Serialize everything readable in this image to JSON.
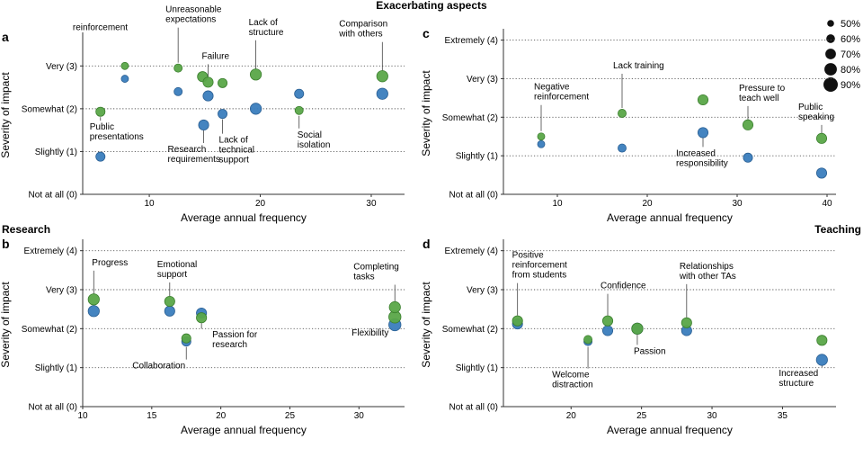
{
  "figure_title": "Exacerbating aspects",
  "section_labels": {
    "research": "Research",
    "teaching": "Teaching"
  },
  "legend": {
    "items": [
      "50%",
      "60%",
      "70%",
      "80%",
      "90%"
    ],
    "sizes": [
      50,
      60,
      70,
      80,
      90
    ]
  },
  "colors": {
    "green": "#5aa748",
    "blue": "#3a7dbd",
    "stroke_green": "#3b7f2e",
    "stroke_blue": "#2a5f93"
  },
  "chart_data": [
    {
      "panel": "a",
      "type": "scatter",
      "xlabel": "Average annual frequency",
      "ylabel": "Severity of impact",
      "xlim": [
        4,
        33
      ],
      "xticks": [
        10,
        20,
        30
      ],
      "ylim": [
        0,
        3.7
      ],
      "ytick_values": [
        0,
        1,
        2,
        3
      ],
      "ytick_labels": [
        "Not at all (0)",
        "Slightly (1)",
        "Somewhat (2)",
        "Very (3)"
      ],
      "points": [
        {
          "x": 5.6,
          "y": 1.93,
          "size": 60,
          "series": "green"
        },
        {
          "x": 5.6,
          "y": 0.88,
          "size": 60,
          "series": "blue"
        },
        {
          "x": 7.8,
          "y": 3.0,
          "size": 50,
          "series": "green"
        },
        {
          "x": 7.8,
          "y": 2.7,
          "size": 50,
          "series": "blue"
        },
        {
          "x": 12.6,
          "y": 2.95,
          "size": 55,
          "series": "green"
        },
        {
          "x": 12.6,
          "y": 2.4,
          "size": 55,
          "series": "blue"
        },
        {
          "x": 14.8,
          "y": 2.75,
          "size": 65,
          "series": "green"
        },
        {
          "x": 15.3,
          "y": 2.62,
          "size": 65,
          "series": "green"
        },
        {
          "x": 15.3,
          "y": 2.3,
          "size": 65,
          "series": "blue"
        },
        {
          "x": 14.9,
          "y": 1.62,
          "size": 65,
          "series": "blue"
        },
        {
          "x": 16.6,
          "y": 2.6,
          "size": 60,
          "series": "green"
        },
        {
          "x": 16.6,
          "y": 1.88,
          "size": 60,
          "series": "blue"
        },
        {
          "x": 19.6,
          "y": 2.8,
          "size": 70,
          "series": "green"
        },
        {
          "x": 19.6,
          "y": 2.0,
          "size": 70,
          "series": "blue"
        },
        {
          "x": 23.5,
          "y": 2.35,
          "size": 60,
          "series": "blue"
        },
        {
          "x": 23.5,
          "y": 1.96,
          "size": 55,
          "series": "green"
        },
        {
          "x": 31.0,
          "y": 2.76,
          "size": 70,
          "series": "green"
        },
        {
          "x": 31.0,
          "y": 2.35,
          "size": 70,
          "series": "blue"
        }
      ],
      "annotations": [
        {
          "text": "reinforcement",
          "x": 7.8,
          "y": 3.0
        },
        {
          "text": "Unreasonable expectations",
          "x": 12.6,
          "y": 2.95
        },
        {
          "text": "Failure",
          "x": 15.3,
          "y": 2.62
        },
        {
          "text": "Lack of structure",
          "x": 19.6,
          "y": 2.8
        },
        {
          "text": "Comparison with others",
          "x": 31.0,
          "y": 2.76
        },
        {
          "text": "Public presentations",
          "x": 5.6,
          "y": 1.93
        },
        {
          "text": "Research requirements",
          "x": 14.9,
          "y": 1.62
        },
        {
          "text": "Lack of technical support",
          "x": 16.6,
          "y": 1.88
        },
        {
          "text": "Social isolation",
          "x": 23.5,
          "y": 1.96
        }
      ]
    },
    {
      "panel": "b",
      "type": "scatter",
      "xlabel": "Average annual frequency",
      "ylabel": "Severity of impact",
      "xlim": [
        10,
        33.3
      ],
      "xticks": [
        10,
        15,
        20,
        25,
        30
      ],
      "ylim": [
        0,
        4.2
      ],
      "ytick_values": [
        0,
        1,
        2,
        3,
        4
      ],
      "ytick_labels": [
        "Not at all (0)",
        "Slightly (1)",
        "Somewhat (2)",
        "Very (3)",
        "Extremely (4)"
      ],
      "points": [
        {
          "x": 10.8,
          "y": 2.45,
          "size": 70,
          "series": "blue"
        },
        {
          "x": 10.8,
          "y": 2.75,
          "size": 70,
          "series": "green"
        },
        {
          "x": 16.3,
          "y": 2.45,
          "size": 65,
          "series": "blue"
        },
        {
          "x": 16.3,
          "y": 2.7,
          "size": 65,
          "series": "green"
        },
        {
          "x": 17.5,
          "y": 1.67,
          "size": 60,
          "series": "blue"
        },
        {
          "x": 17.5,
          "y": 1.75,
          "size": 60,
          "series": "green"
        },
        {
          "x": 18.6,
          "y": 2.4,
          "size": 65,
          "series": "blue"
        },
        {
          "x": 18.6,
          "y": 2.28,
          "size": 65,
          "series": "green"
        },
        {
          "x": 32.6,
          "y": 2.1,
          "size": 75,
          "series": "blue"
        },
        {
          "x": 32.6,
          "y": 2.3,
          "size": 75,
          "series": "green"
        },
        {
          "x": 32.6,
          "y": 2.55,
          "size": 70,
          "series": "green"
        }
      ],
      "annotations": [
        {
          "text": "Progress",
          "x": 10.8,
          "y": 2.75
        },
        {
          "text": "Emotional support",
          "x": 16.3,
          "y": 2.7
        },
        {
          "text": "Passion for research",
          "x": 18.6,
          "y": 2.28
        },
        {
          "text": "Collaboration",
          "x": 17.5,
          "y": 1.67
        },
        {
          "text": "Completing tasks",
          "x": 32.6,
          "y": 2.55
        },
        {
          "text": "Flexibility",
          "x": 32.6,
          "y": 2.1
        }
      ]
    },
    {
      "panel": "c",
      "type": "scatter",
      "xlabel": "Average annual frequency",
      "ylabel": "Severity of impact",
      "xlim": [
        4,
        41
      ],
      "xticks": [
        10,
        20,
        30,
        40
      ],
      "ylim": [
        0,
        4.2
      ],
      "ytick_values": [
        0,
        1,
        2,
        3,
        4
      ],
      "ytick_labels": [
        "Not at all (0)",
        "Slightly (1)",
        "Somewhat (2)",
        "Very (3)",
        "Extremely (4)"
      ],
      "points": [
        {
          "x": 8.2,
          "y": 1.5,
          "size": 50,
          "series": "green"
        },
        {
          "x": 8.2,
          "y": 1.3,
          "size": 50,
          "series": "blue"
        },
        {
          "x": 17.2,
          "y": 2.1,
          "size": 55,
          "series": "green"
        },
        {
          "x": 17.2,
          "y": 1.2,
          "size": 55,
          "series": "blue"
        },
        {
          "x": 26.2,
          "y": 2.45,
          "size": 65,
          "series": "green"
        },
        {
          "x": 26.2,
          "y": 1.6,
          "size": 65,
          "series": "blue"
        },
        {
          "x": 31.2,
          "y": 1.8,
          "size": 65,
          "series": "green"
        },
        {
          "x": 31.2,
          "y": 0.95,
          "size": 60,
          "series": "blue"
        },
        {
          "x": 39.4,
          "y": 1.45,
          "size": 65,
          "series": "green"
        },
        {
          "x": 39.4,
          "y": 0.55,
          "size": 65,
          "series": "blue"
        }
      ],
      "annotations": [
        {
          "text": "Negative reinforcement",
          "x": 8.2,
          "y": 1.5
        },
        {
          "text": "Lack training",
          "x": 17.2,
          "y": 2.1
        },
        {
          "text": "Increased responsibility",
          "x": 26.2,
          "y": 1.6
        },
        {
          "text": "Pressure to teach well",
          "x": 31.2,
          "y": 1.8
        },
        {
          "text": "Public speaking",
          "x": 39.4,
          "y": 1.45
        }
      ]
    },
    {
      "panel": "d",
      "type": "scatter",
      "xlabel": "Average annual frequency",
      "ylabel": "Severity of impact",
      "xlim": [
        15.2,
        38.8
      ],
      "xticks": [
        20,
        25,
        30,
        35
      ],
      "ylim": [
        0,
        4.2
      ],
      "ytick_values": [
        0,
        1,
        2,
        3,
        4
      ],
      "ytick_labels": [
        "Not at all (0)",
        "Slightly (1)",
        "Somewhat (2)",
        "Very (3)",
        "Extremely (4)"
      ],
      "points": [
        {
          "x": 16.2,
          "y": 2.12,
          "size": 65,
          "series": "blue"
        },
        {
          "x": 16.2,
          "y": 2.2,
          "size": 65,
          "series": "green"
        },
        {
          "x": 21.2,
          "y": 1.67,
          "size": 55,
          "series": "blue"
        },
        {
          "x": 21.2,
          "y": 1.72,
          "size": 55,
          "series": "green"
        },
        {
          "x": 22.6,
          "y": 1.95,
          "size": 65,
          "series": "blue"
        },
        {
          "x": 22.6,
          "y": 2.2,
          "size": 65,
          "series": "green"
        },
        {
          "x": 24.7,
          "y": 2.0,
          "size": 70,
          "series": "blue"
        },
        {
          "x": 24.7,
          "y": 2.0,
          "size": 70,
          "series": "green"
        },
        {
          "x": 28.2,
          "y": 1.95,
          "size": 65,
          "series": "blue"
        },
        {
          "x": 28.2,
          "y": 2.15,
          "size": 65,
          "series": "green"
        },
        {
          "x": 37.8,
          "y": 1.7,
          "size": 65,
          "series": "green"
        },
        {
          "x": 37.8,
          "y": 1.2,
          "size": 70,
          "series": "blue"
        }
      ],
      "annotations": [
        {
          "text": "Positive reinforcement from students",
          "x": 16.2,
          "y": 2.2
        },
        {
          "text": "Confidence",
          "x": 22.6,
          "y": 2.2
        },
        {
          "text": "Relationships with other TAs",
          "x": 28.2,
          "y": 2.15
        },
        {
          "text": "Welcome distraction",
          "x": 21.2,
          "y": 1.67
        },
        {
          "text": "Passion",
          "x": 24.7,
          "y": 2.0
        },
        {
          "text": "Increased structure",
          "x": 37.8,
          "y": 1.2
        }
      ]
    }
  ]
}
